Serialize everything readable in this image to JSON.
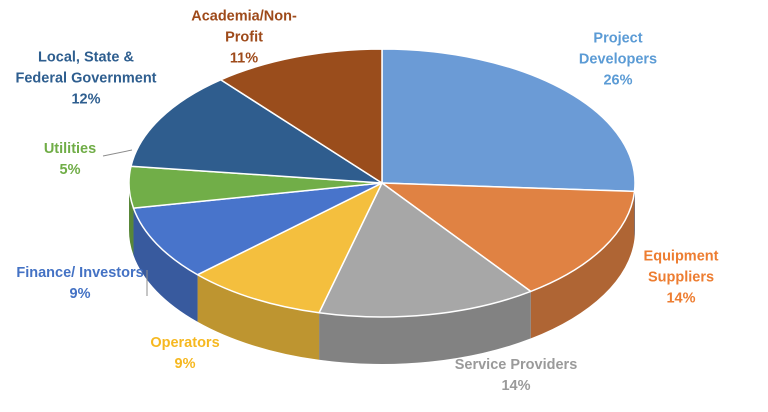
{
  "chart_data": {
    "type": "pie",
    "style": "3d-pie",
    "slices": [
      {
        "label_lines": [
          "Project",
          "Developers"
        ],
        "percent_text": "26%",
        "value": 26,
        "color": "#6B9BD6",
        "text_color": "#5B9BD5"
      },
      {
        "label_lines": [
          "Equipment",
          "Suppliers"
        ],
        "percent_text": "14%",
        "value": 14,
        "color": "#E08243",
        "text_color": "#ED7D31"
      },
      {
        "label_lines": [
          "Service Providers"
        ],
        "percent_text": "14%",
        "value": 14,
        "color": "#A7A7A7",
        "text_color": "#9A9A9A"
      },
      {
        "label_lines": [
          "Operators"
        ],
        "percent_text": "9%",
        "value": 9,
        "color": "#F4BF3E",
        "text_color": "#F6B820"
      },
      {
        "label_lines": [
          "Finance/ Investors"
        ],
        "percent_text": "9%",
        "value": 9,
        "color": "#4874CB",
        "text_color": "#4472C4"
      },
      {
        "label_lines": [
          "Utilities"
        ],
        "percent_text": "5%",
        "value": 5,
        "color": "#71AE48",
        "text_color": "#70AD47"
      },
      {
        "label_lines": [
          "Local,  State &",
          "Federal Government"
        ],
        "percent_text": "12%",
        "value": 12,
        "color": "#2F5D8E",
        "text_color": "#2E5E8F"
      },
      {
        "label_lines": [
          "Academia/Non-",
          "Profit"
        ],
        "percent_text": "11%",
        "value": 11,
        "color": "#9A4D1C",
        "text_color": "#9E4A1A"
      }
    ]
  }
}
